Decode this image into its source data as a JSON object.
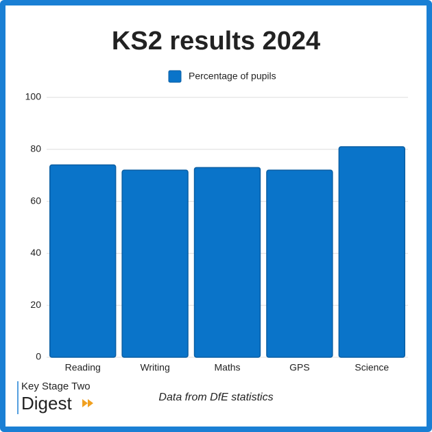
{
  "chart_data": {
    "type": "bar",
    "title": "KS2 results 2024",
    "categories": [
      "Reading",
      "Writing",
      "Maths",
      "GPS",
      "Science"
    ],
    "series": [
      {
        "name": "Percentage of pupils",
        "color": "#0a74c9",
        "values": [
          74,
          72,
          73,
          72,
          81
        ]
      }
    ],
    "ylim": [
      0,
      100
    ],
    "yticks": [
      0,
      20,
      40,
      60,
      80,
      100
    ],
    "grid": true,
    "legend": "top"
  },
  "footer": {
    "note": "Data from DfE statistics",
    "logo_top": "Key Stage Two",
    "logo_bottom": "Digest"
  }
}
